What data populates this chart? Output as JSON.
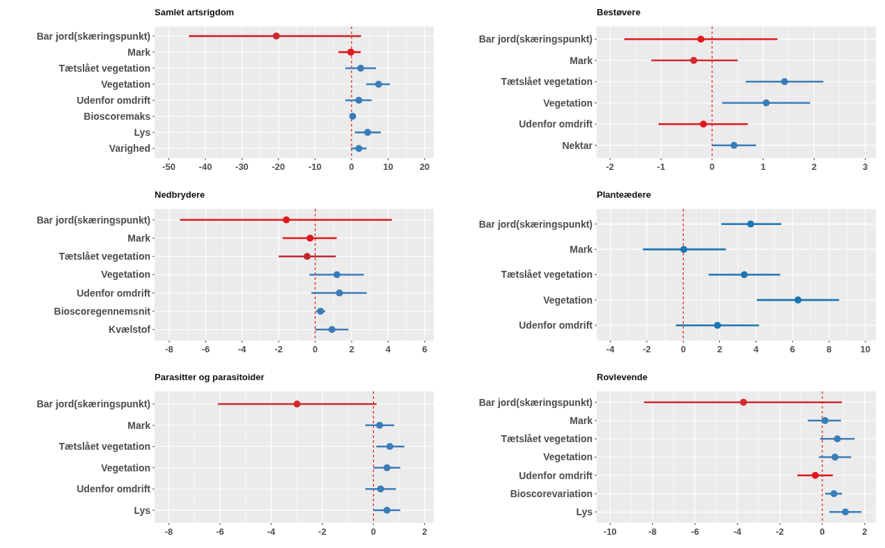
{
  "chart_data": [
    {
      "type": "scatter",
      "orientation": "horizontal",
      "title": "Samlet artsrigdom",
      "grid": true,
      "marker": "circle",
      "categories": [
        "Bar jord(skæringspunkt)",
        "Mark",
        "Tætslået vegetation",
        "Vegetation",
        "Udenfor omdrift",
        "Bioscoremaks",
        "Lys",
        "Varighed"
      ],
      "values": [
        -20.6,
        -0.2,
        2.5,
        7.4,
        2.0,
        0.3,
        4.4,
        2.0
      ],
      "errors": [
        [
          -44.5,
          2.6
        ],
        [
          -3.6,
          2.5
        ],
        [
          -1.7,
          6.7
        ],
        [
          4.0,
          10.5
        ],
        [
          -1.7,
          5.5
        ],
        [
          -0.4,
          1.1
        ],
        [
          0.9,
          8.0
        ],
        [
          -0.2,
          4.1
        ]
      ],
      "colors": [
        "#cb2a2e",
        "#e0181c",
        "#3a7dba",
        "#3a7dba",
        "#3a7dba",
        "#3a7dba",
        "#3a7dba",
        "#3a7dba"
      ],
      "xlim": [
        -53.9,
        22.5
      ],
      "xticks": [
        -50,
        -40,
        -30,
        -20,
        -10,
        0,
        10,
        20
      ],
      "ref_lines": [
        {
          "axis": "x",
          "value": 0,
          "color": "#d7191c",
          "line_style": "dashed"
        }
      ]
    },
    {
      "type": "scatter",
      "orientation": "horizontal",
      "title": "Bestøvere",
      "grid": true,
      "marker": "circle",
      "categories": [
        "Bar jord(skæringspunkt)",
        "Mark",
        "Tætslået vegetation",
        "Vegetation",
        "Udenfor omdrift",
        "Nektar"
      ],
      "values": [
        -0.22,
        -0.36,
        1.42,
        1.06,
        -0.17,
        0.43
      ],
      "errors": [
        [
          -1.72,
          1.28
        ],
        [
          -1.19,
          0.5
        ],
        [
          0.66,
          2.18
        ],
        [
          0.2,
          1.92
        ],
        [
          -1.05,
          0.7
        ],
        [
          0.0,
          0.86
        ]
      ],
      "colors": [
        "#e0181c",
        "#d32a2e",
        "#3a7dba",
        "#3a7dba",
        "#e0181c",
        "#3a7dba"
      ],
      "xlim": [
        -2.26,
        3.21
      ],
      "xticks": [
        -2,
        -1,
        0,
        1,
        2,
        3
      ],
      "ref_lines": [
        {
          "axis": "x",
          "value": 0,
          "color": "#d7191c",
          "line_style": "dashed"
        }
      ]
    },
    {
      "type": "scatter",
      "orientation": "horizontal",
      "title": "Nedbrydere",
      "grid": true,
      "marker": "circle",
      "categories": [
        "Bar jord(skæringspunkt)",
        "Mark",
        "Tætslået vegetation",
        "Vegetation",
        "Udenfor omdrift",
        "Bioscoregennemsnit",
        "Kvælstof"
      ],
      "values": [
        -1.58,
        -0.28,
        -0.44,
        1.19,
        1.33,
        0.29,
        0.92
      ],
      "errors": [
        [
          -7.41,
          4.2
        ],
        [
          -1.79,
          1.18
        ],
        [
          -2.0,
          1.13
        ],
        [
          -0.32,
          2.66
        ],
        [
          -0.21,
          2.83
        ],
        [
          0.05,
          0.55
        ],
        [
          0.0,
          1.82
        ]
      ],
      "colors": [
        "#e0181c",
        "#e0181c",
        "#c0272d",
        "#3a7dba",
        "#3a7dba",
        "#3a7dba",
        "#3a7dba"
      ],
      "xlim": [
        -8.8,
        6.5
      ],
      "xticks": [
        -8,
        -6,
        -4,
        -2,
        0,
        2,
        4,
        6
      ],
      "ref_lines": [
        {
          "axis": "x",
          "value": 0,
          "color": "#d7191c",
          "line_style": "dashed"
        }
      ]
    },
    {
      "type": "scatter",
      "orientation": "horizontal",
      "title": "Planteædere",
      "grid": true,
      "marker": "circle",
      "categories": [
        "Bar jord(skæringspunkt)",
        "Mark",
        "Tætslået vegetation",
        "Vegetation",
        "Udenfor omdrift"
      ],
      "values": [
        3.7,
        0.03,
        3.35,
        6.3,
        1.88
      ],
      "errors": [
        [
          2.09,
          5.38
        ],
        [
          -2.22,
          2.34
        ],
        [
          1.39,
          5.32
        ],
        [
          4.04,
          8.56
        ],
        [
          -0.41,
          4.16
        ]
      ],
      "colors": [
        "#1b75b0",
        "#1b75b0",
        "#1b75b0",
        "#1b75b0",
        "#1b75b0"
      ],
      "xlim": [
        -4.75,
        10.58
      ],
      "xticks": [
        -4,
        -2,
        0,
        2,
        4,
        6,
        8,
        10
      ],
      "ref_lines": [
        {
          "axis": "x",
          "value": 0,
          "color": "#d7191c",
          "line_style": "dashed"
        }
      ]
    },
    {
      "type": "scatter",
      "orientation": "horizontal",
      "title": "Parasitter og parasitoider",
      "grid": true,
      "marker": "circle",
      "categories": [
        "Bar jord(skæringspunkt)",
        "Mark",
        "Tætslået vegetation",
        "Vegetation",
        "Udenfor omdrift",
        "Lys"
      ],
      "values": [
        -2.99,
        0.24,
        0.64,
        0.53,
        0.28,
        0.53
      ],
      "errors": [
        [
          -6.08,
          0.12
        ],
        [
          -0.32,
          0.81
        ],
        [
          0.11,
          1.21
        ],
        [
          0.0,
          1.05
        ],
        [
          -0.32,
          0.88
        ],
        [
          0.0,
          1.05
        ]
      ],
      "colors": [
        "#d32a2e",
        "#3a7dba",
        "#3a7dba",
        "#3a7dba",
        "#3a7dba",
        "#3a7dba"
      ],
      "xlim": [
        -8.56,
        2.36
      ],
      "xticks": [
        -8,
        -6,
        -4,
        -2,
        0,
        2
      ],
      "ref_lines": [
        {
          "axis": "x",
          "value": 0,
          "color": "#d7191c",
          "line_style": "dashed"
        }
      ]
    },
    {
      "type": "scatter",
      "orientation": "horizontal",
      "title": "Rovlevende",
      "grid": true,
      "marker": "circle",
      "categories": [
        "Bar jord(skæringspunkt)",
        "Mark",
        "Tætslået vegetation",
        "Vegetation",
        "Udenfor omdrift",
        "Bioscorevariation",
        "Lys"
      ],
      "values": [
        -3.71,
        0.13,
        0.71,
        0.6,
        -0.33,
        0.55,
        1.09
      ],
      "errors": [
        [
          -8.4,
          0.93
        ],
        [
          -0.68,
          0.88
        ],
        [
          -0.1,
          1.52
        ],
        [
          -0.16,
          1.36
        ],
        [
          -1.17,
          0.5
        ],
        [
          0.14,
          0.93
        ],
        [
          0.33,
          1.85
        ]
      ],
      "colors": [
        "#d32a2e",
        "#3a7dba",
        "#3a7dba",
        "#3a7dba",
        "#e0181c",
        "#3a7dba",
        "#3a7dba"
      ],
      "xlim": [
        -10.63,
        2.53
      ],
      "xticks": [
        -10,
        -8,
        -6,
        -4,
        -2,
        0,
        2
      ],
      "ref_lines": [
        {
          "axis": "x",
          "value": 0,
          "color": "#d7191c",
          "line_style": "dashed"
        }
      ]
    }
  ]
}
